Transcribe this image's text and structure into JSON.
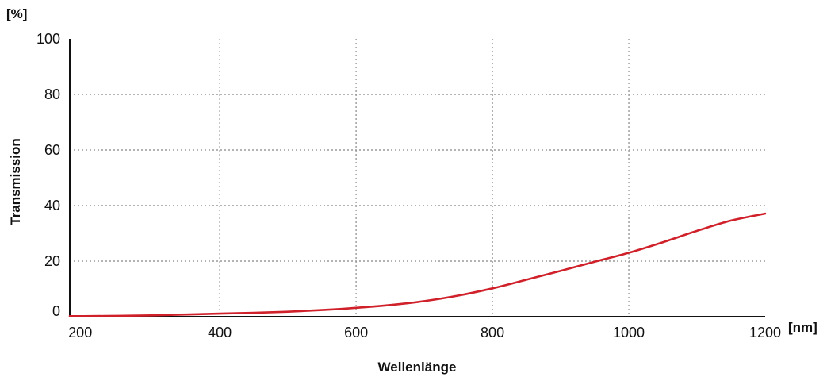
{
  "chart_data": {
    "type": "line",
    "xlabel": "Wellenlänge",
    "ylabel": "Transmission",
    "x_unit": "[nm]",
    "y_unit": "[%]",
    "xlim": [
      180,
      1200
    ],
    "ylim": [
      0,
      100
    ],
    "x_ticks": [
      200,
      400,
      600,
      800,
      1000,
      1200
    ],
    "y_ticks": [
      0,
      20,
      40,
      60,
      80,
      100
    ],
    "x_gridlines": [
      400,
      600,
      800,
      1000
    ],
    "y_gridlines": [
      20,
      40,
      60,
      80
    ],
    "grid": true,
    "grid_style": "dotted",
    "line_color": "#d0202a",
    "series": [
      {
        "x": [
          180,
          200,
          250,
          300,
          350,
          400,
          450,
          500,
          550,
          600,
          650,
          700,
          750,
          800,
          850,
          900,
          950,
          1000,
          1050,
          1100,
          1150,
          1200
        ],
        "y": [
          0.2,
          0.2,
          0.3,
          0.5,
          0.8,
          1.1,
          1.4,
          1.8,
          2.4,
          3.2,
          4.2,
          5.6,
          7.6,
          10.2,
          13.3,
          16.5,
          19.8,
          23.0,
          26.8,
          30.9,
          34.6,
          37.1
        ]
      }
    ]
  }
}
